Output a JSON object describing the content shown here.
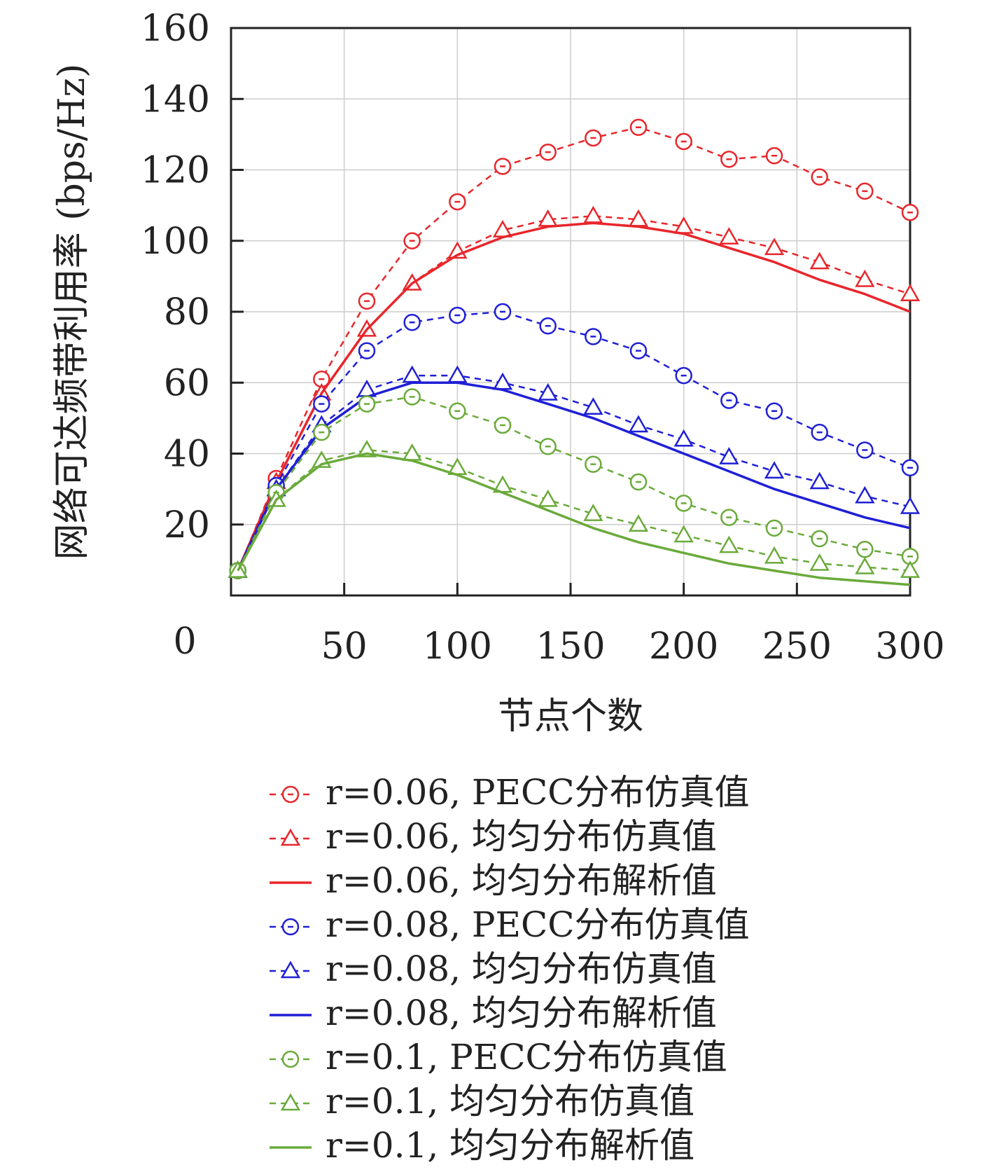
{
  "chart_data": {
    "type": "line",
    "title": "",
    "xlabel": "节点个数",
    "ylabel": "网络可达频带利用率 (bps/Hz)",
    "xlim": [
      0,
      300
    ],
    "ylim": [
      0,
      160
    ],
    "x_origin_label": "0",
    "xticks": [
      50,
      100,
      150,
      200,
      250,
      300
    ],
    "yticks": [
      20,
      40,
      60,
      80,
      100,
      120,
      140,
      160
    ],
    "grid": true,
    "legend_position": "below",
    "colors": {
      "r006": "#e8262b",
      "r008": "#1f1fd6",
      "r01": "#6aaa3a"
    },
    "series": [
      {
        "name": "r=0.06, PECC分布仿真值",
        "color": "#e8262b",
        "marker": "circle",
        "dash": true,
        "x": [
          3,
          20,
          40,
          60,
          80,
          100,
          120,
          140,
          160,
          180,
          200,
          220,
          240,
          260,
          280,
          300
        ],
        "y": [
          7,
          33,
          61,
          83,
          100,
          111,
          121,
          125,
          129,
          132,
          128,
          123,
          124,
          118,
          114,
          108
        ]
      },
      {
        "name": "r=0.06, 均匀分布仿真值",
        "color": "#e8262b",
        "marker": "triangle",
        "dash": true,
        "x": [
          3,
          20,
          40,
          60,
          80,
          100,
          120,
          140,
          160,
          180,
          200,
          220,
          240,
          260,
          280,
          300
        ],
        "y": [
          7,
          32,
          57,
          75,
          88,
          97,
          103,
          106,
          107,
          106,
          104,
          101,
          98,
          94,
          89,
          85
        ]
      },
      {
        "name": "r=0.06, 均匀分布解析值",
        "color": "#e8262b",
        "marker": "none",
        "dash": false,
        "x": [
          3,
          20,
          40,
          60,
          80,
          100,
          120,
          140,
          160,
          180,
          200,
          220,
          240,
          260,
          280,
          300
        ],
        "y": [
          7,
          32,
          57,
          75,
          88,
          96,
          101,
          104,
          105,
          104,
          102,
          98,
          94,
          89,
          85,
          80
        ]
      },
      {
        "name": "r=0.08, PECC分布仿真值",
        "color": "#1f1fd6",
        "marker": "circle",
        "dash": true,
        "x": [
          3,
          20,
          40,
          60,
          80,
          100,
          120,
          140,
          160,
          180,
          200,
          220,
          240,
          260,
          280,
          300
        ],
        "y": [
          7,
          31,
          54,
          69,
          77,
          79,
          80,
          76,
          73,
          69,
          62,
          55,
          52,
          46,
          41,
          36
        ]
      },
      {
        "name": "r=0.08, 均匀分布仿真值",
        "color": "#1f1fd6",
        "marker": "triangle",
        "dash": true,
        "x": [
          3,
          20,
          40,
          60,
          80,
          100,
          120,
          140,
          160,
          180,
          200,
          220,
          240,
          260,
          280,
          300
        ],
        "y": [
          7,
          30,
          48,
          58,
          62,
          62,
          60,
          57,
          53,
          48,
          44,
          39,
          35,
          32,
          28,
          25
        ]
      },
      {
        "name": "r=0.08, 均匀分布解析值",
        "color": "#1f1fd6",
        "marker": "none",
        "dash": false,
        "x": [
          3,
          20,
          40,
          60,
          80,
          100,
          120,
          140,
          160,
          180,
          200,
          220,
          240,
          260,
          280,
          300
        ],
        "y": [
          7,
          30,
          47,
          56,
          60,
          60,
          58,
          54,
          50,
          45,
          40,
          35,
          30,
          26,
          22,
          19
        ]
      },
      {
        "name": "r=0.1, PECC分布仿真值",
        "color": "#6aaa3a",
        "marker": "circle",
        "dash": true,
        "x": [
          3,
          20,
          40,
          60,
          80,
          100,
          120,
          140,
          160,
          180,
          200,
          220,
          240,
          260,
          280,
          300
        ],
        "y": [
          7,
          29,
          46,
          54,
          56,
          52,
          48,
          42,
          37,
          32,
          26,
          22,
          19,
          16,
          13,
          11
        ]
      },
      {
        "name": "r=0.1, 均匀分布仿真值",
        "color": "#6aaa3a",
        "marker": "triangle",
        "dash": true,
        "x": [
          3,
          20,
          40,
          60,
          80,
          100,
          120,
          140,
          160,
          180,
          200,
          220,
          240,
          260,
          280,
          300
        ],
        "y": [
          7,
          27,
          38,
          41,
          40,
          36,
          31,
          27,
          23,
          20,
          17,
          14,
          11,
          9,
          8,
          7
        ]
      },
      {
        "name": "r=0.1, 均匀分布解析值",
        "color": "#6aaa3a",
        "marker": "none",
        "dash": false,
        "x": [
          3,
          20,
          40,
          60,
          80,
          100,
          120,
          140,
          160,
          180,
          200,
          220,
          240,
          260,
          280,
          300
        ],
        "y": [
          7,
          27,
          37,
          40,
          38,
          34,
          29,
          24,
          19,
          15,
          12,
          9,
          7,
          5,
          4,
          3
        ]
      }
    ]
  }
}
